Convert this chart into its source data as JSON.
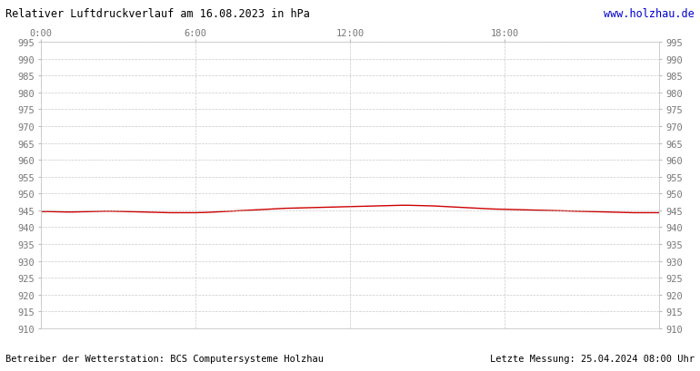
{
  "title": "Relativer Luftdruckverlauf am 16.08.2023 in hPa",
  "url_text": "www.holzhau.de",
  "footer_left": "Betreiber der Wetterstation: BCS Computersysteme Holzhau",
  "footer_right": "Letzte Messung: 25.04.2024 08:00 Uhr",
  "ymin": 910,
  "ymax": 995,
  "ytick_step": 5,
  "xlim_min": 0,
  "xlim_max": 24,
  "xticks": [
    0,
    6,
    12,
    18
  ],
  "xticklabels": [
    "0:00",
    "6:00",
    "12:00",
    "18:00"
  ],
  "bg_color": "#ffffff",
  "plot_bg_color": "#ffffff",
  "grid_color": "#bbbbbb",
  "line_color": "#cc0000",
  "title_color": "#000000",
  "url_color": "#0000cc",
  "footer_color": "#000000",
  "pressure_x": [
    0.0,
    0.25,
    0.5,
    0.75,
    1.0,
    1.25,
    1.5,
    1.75,
    2.0,
    2.25,
    2.5,
    2.75,
    3.0,
    3.25,
    3.5,
    3.75,
    4.0,
    4.25,
    4.5,
    4.75,
    5.0,
    5.25,
    5.5,
    5.75,
    6.0,
    6.25,
    6.5,
    6.75,
    7.0,
    7.25,
    7.5,
    7.75,
    8.0,
    8.25,
    8.5,
    8.75,
    9.0,
    9.25,
    9.5,
    9.75,
    10.0,
    10.25,
    10.5,
    10.75,
    11.0,
    11.25,
    11.5,
    11.75,
    12.0,
    12.25,
    12.5,
    12.75,
    13.0,
    13.25,
    13.5,
    13.75,
    14.0,
    14.25,
    14.5,
    14.75,
    15.0,
    15.25,
    15.5,
    15.75,
    16.0,
    16.25,
    16.5,
    16.75,
    17.0,
    17.25,
    17.5,
    17.75,
    18.0,
    18.25,
    18.5,
    18.75,
    19.0,
    19.25,
    19.5,
    19.75,
    20.0,
    20.25,
    20.5,
    20.75,
    21.0,
    21.25,
    21.5,
    21.75,
    22.0,
    22.25,
    22.5,
    22.75,
    23.0,
    23.25,
    23.5,
    23.75,
    24.0
  ],
  "pressure_y": [
    944.6,
    944.65,
    944.6,
    944.55,
    944.5,
    944.5,
    944.55,
    944.6,
    944.65,
    944.7,
    944.75,
    944.75,
    944.7,
    944.65,
    944.6,
    944.55,
    944.5,
    944.45,
    944.4,
    944.35,
    944.3,
    944.3,
    944.3,
    944.3,
    944.3,
    944.35,
    944.4,
    944.5,
    944.6,
    944.7,
    944.8,
    944.9,
    945.0,
    945.1,
    945.2,
    945.3,
    945.4,
    945.5,
    945.6,
    945.65,
    945.7,
    945.75,
    945.8,
    945.85,
    945.9,
    945.95,
    946.0,
    946.05,
    946.1,
    946.15,
    946.2,
    946.25,
    946.3,
    946.35,
    946.4,
    946.45,
    946.5,
    946.5,
    946.45,
    946.4,
    946.35,
    946.3,
    946.2,
    946.1,
    946.0,
    945.9,
    945.8,
    945.7,
    945.6,
    945.5,
    945.4,
    945.35,
    945.3,
    945.25,
    945.2,
    945.15,
    945.1,
    945.05,
    945.0,
    944.95,
    944.9,
    944.85,
    944.8,
    944.75,
    944.7,
    944.65,
    944.6,
    944.55,
    944.5,
    944.45,
    944.4,
    944.35,
    944.3,
    944.3,
    944.3,
    944.3,
    944.3
  ]
}
